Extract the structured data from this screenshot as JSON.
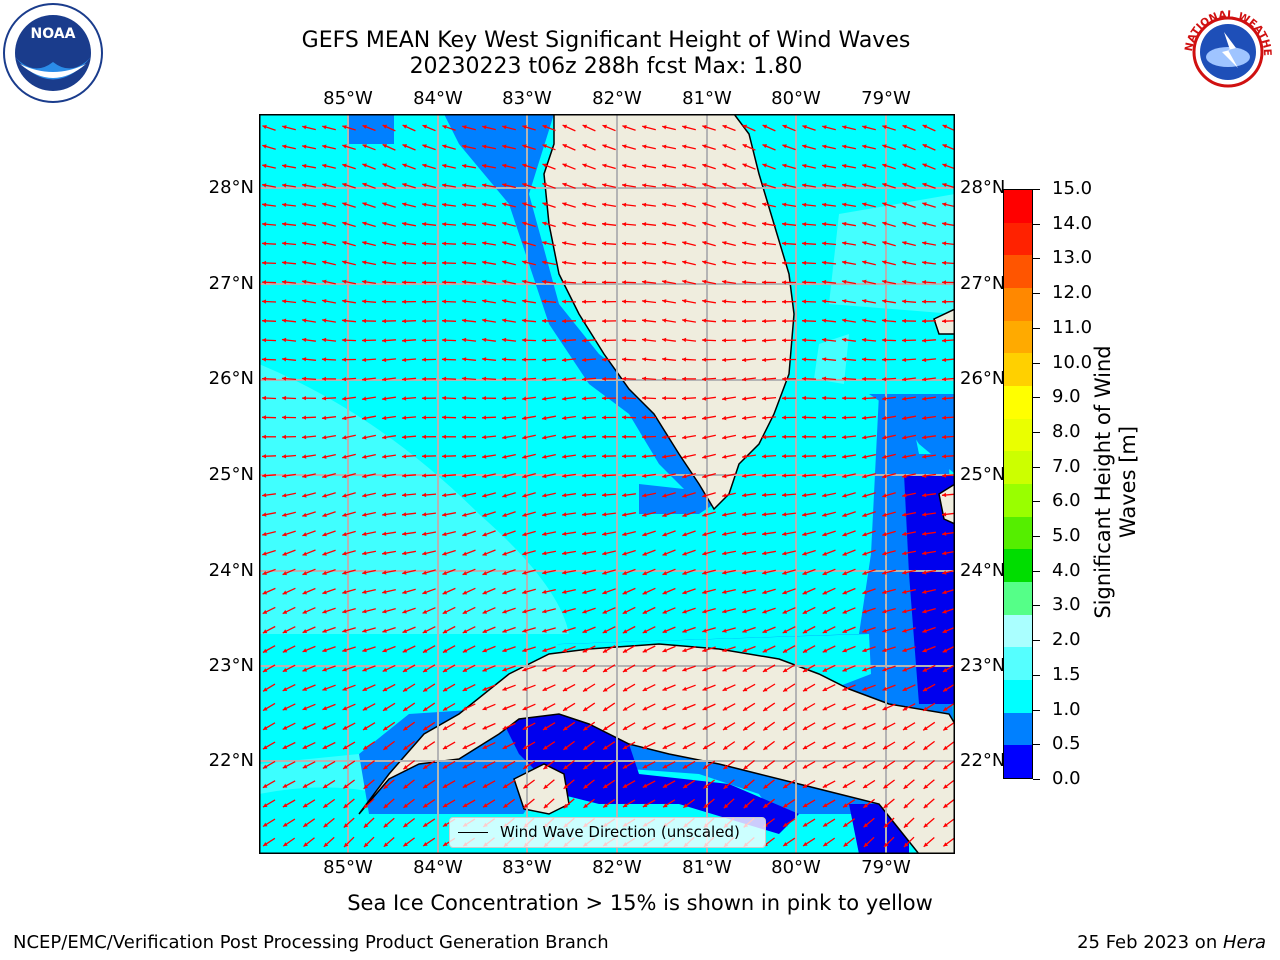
{
  "header": {
    "title_line1": "GEFS MEAN Key West Significant Height of Wind Waves",
    "title_line2": "20230223 t06z 288h fcst   Max: 1.80"
  },
  "logos": {
    "left": {
      "name": "noaa-logo",
      "text": "NOAA"
    },
    "right": {
      "name": "nws-logo",
      "text": "NATIONAL WEATHER SERVICE"
    }
  },
  "map": {
    "lon_labels": [
      "85°W",
      "84°W",
      "83°W",
      "82°W",
      "81°W",
      "80°W",
      "79°W"
    ],
    "lat_labels": [
      "28°N",
      "27°N",
      "26°N",
      "25°N",
      "24°N",
      "23°N",
      "22°N"
    ],
    "legend_label": "Wind Wave Direction (unscaled)",
    "colors": {
      "ocean_main": "#00ffff",
      "ocean_light": "#55ffff",
      "ocean_mid": "#0080ff",
      "ocean_deep": "#0000ee",
      "land": "#efedde",
      "grid": "#b4b4b4",
      "arrow": "#ff0000"
    }
  },
  "colorbar": {
    "label": "Significant Height of Wind Waves [m]",
    "ticks": [
      "15.0",
      "14.0",
      "13.0",
      "12.0",
      "11.0",
      "10.0",
      "9.0",
      "8.0",
      "7.0",
      "6.0",
      "5.0",
      "4.0",
      "3.0",
      "2.0",
      "1.5",
      "1.0",
      "0.5",
      "0.0"
    ],
    "colors_top_to_bottom": [
      "#ff0000",
      "#ff2200",
      "#ff5500",
      "#ff8800",
      "#ffaa00",
      "#ffd000",
      "#ffff00",
      "#eaff00",
      "#ccff00",
      "#99ff00",
      "#55ee00",
      "#00dd00",
      "#55ff88",
      "#aaffff",
      "#55ffff",
      "#00ffff",
      "#0080ff",
      "#0000ff"
    ]
  },
  "notes": {
    "sea_ice": "Sea Ice Concentration > 15% is shown in pink to yellow"
  },
  "footer": {
    "left": "NCEP/EMC/Verification Post Processing Product Generation Branch",
    "right_date": "25 Feb 2023 on ",
    "right_host": "Hera"
  }
}
